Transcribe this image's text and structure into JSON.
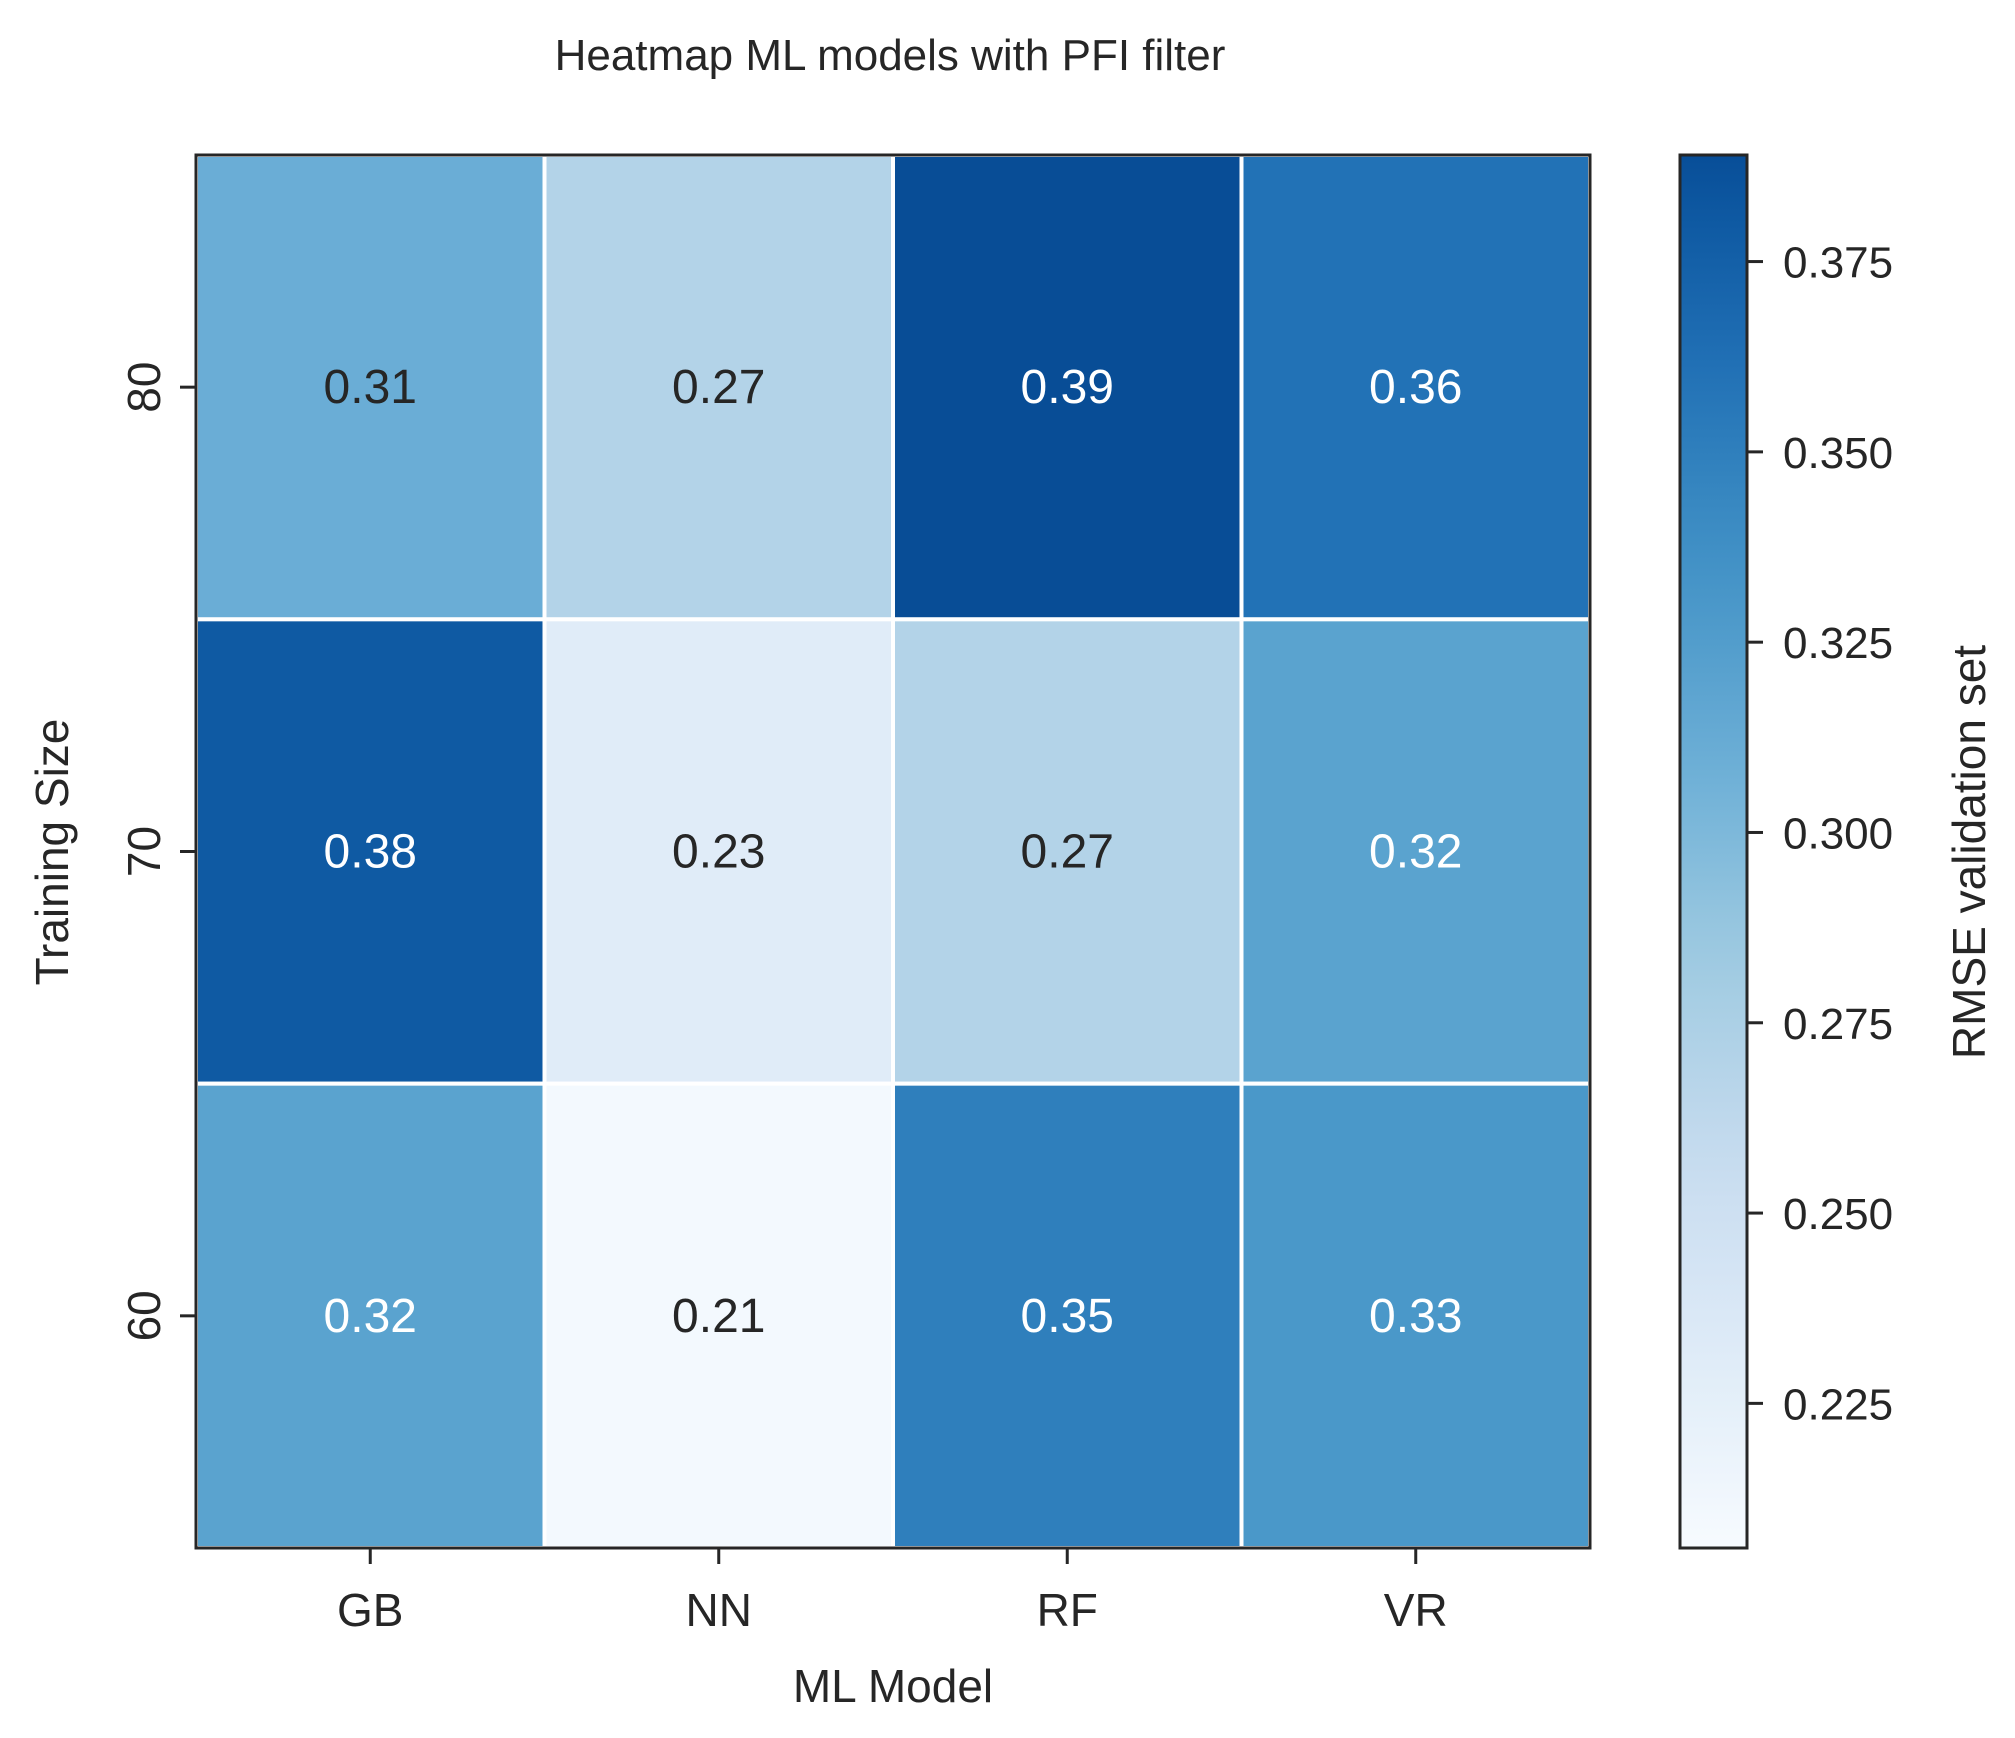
{
  "chart_data": {
    "type": "heatmap",
    "title": "Heatmap ML models with PFI filter",
    "xlabel": "ML Model",
    "ylabel": "Training Size",
    "x_categories": [
      "GB",
      "NN",
      "RF",
      "VR"
    ],
    "y_categories": [
      "80",
      "70",
      "60"
    ],
    "values": [
      [
        0.31,
        0.27,
        0.39,
        0.36
      ],
      [
        0.38,
        0.23,
        0.27,
        0.32
      ],
      [
        0.32,
        0.21,
        0.35,
        0.33
      ]
    ],
    "cell_labels": [
      [
        "0.31",
        "0.27",
        "0.39",
        "0.36"
      ],
      [
        "0.38",
        "0.23",
        "0.27",
        "0.32"
      ],
      [
        "0.32",
        "0.21",
        "0.35",
        "0.33"
      ]
    ],
    "colorbar": {
      "label": "RMSE validation set",
      "range": [
        0.206,
        0.389
      ],
      "ticks": [
        0.225,
        0.25,
        0.275,
        0.3,
        0.325,
        0.35,
        0.375
      ],
      "tick_labels": [
        "0.225",
        "0.250",
        "0.275",
        "0.300",
        "0.325",
        "0.350",
        "0.375"
      ]
    },
    "colormap": "Blues",
    "colors": {
      "low": "#f7fbff",
      "high": "#08519c",
      "grid_line": "#ffffff",
      "frame": "#262626",
      "text_dark": "#262626",
      "text_light": "#ffffff"
    }
  }
}
